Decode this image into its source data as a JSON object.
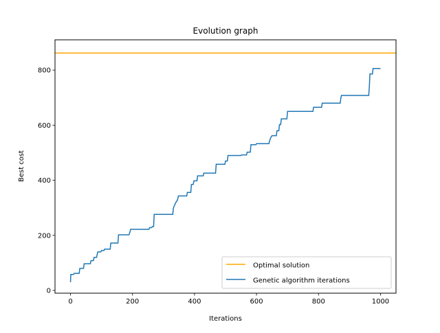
{
  "chart_data": {
    "type": "line",
    "title": "Evolution graph",
    "xlabel": "Iterations",
    "ylabel": "Best cost",
    "xlim": [
      -50,
      1050
    ],
    "ylim": [
      -10,
      910
    ],
    "xticks": [
      0,
      200,
      400,
      600,
      800,
      1000
    ],
    "yticks": [
      0,
      200,
      400,
      600,
      800
    ],
    "grid": false,
    "legend_position": "bottom-right",
    "series": [
      {
        "name": "Optimal solution",
        "color": "#ffa500",
        "kind": "hline",
        "x": [
          -50,
          1050
        ],
        "y": [
          862,
          862
        ]
      },
      {
        "name": "Genetic algorithm iterations",
        "color": "#1f77b4",
        "kind": "step",
        "points": [
          [
            0,
            30
          ],
          [
            1,
            58
          ],
          [
            10,
            58
          ],
          [
            12,
            62
          ],
          [
            28,
            62
          ],
          [
            30,
            80
          ],
          [
            42,
            80
          ],
          [
            44,
            97
          ],
          [
            64,
            97
          ],
          [
            66,
            108
          ],
          [
            74,
            108
          ],
          [
            76,
            120
          ],
          [
            84,
            120
          ],
          [
            86,
            130
          ],
          [
            88,
            140
          ],
          [
            98,
            140
          ],
          [
            100,
            145
          ],
          [
            108,
            145
          ],
          [
            110,
            150
          ],
          [
            128,
            150
          ],
          [
            130,
            172
          ],
          [
            153,
            172
          ],
          [
            155,
            202
          ],
          [
            188,
            202
          ],
          [
            190,
            205
          ],
          [
            194,
            222
          ],
          [
            253,
            222
          ],
          [
            255,
            228
          ],
          [
            262,
            228
          ],
          [
            264,
            232
          ],
          [
            268,
            232
          ],
          [
            270,
            276
          ],
          [
            330,
            276
          ],
          [
            332,
            300
          ],
          [
            340,
            320
          ],
          [
            345,
            328
          ],
          [
            348,
            343
          ],
          [
            375,
            343
          ],
          [
            377,
            356
          ],
          [
            388,
            356
          ],
          [
            390,
            385
          ],
          [
            396,
            385
          ],
          [
            398,
            398
          ],
          [
            408,
            398
          ],
          [
            410,
            416
          ],
          [
            428,
            416
          ],
          [
            430,
            426
          ],
          [
            468,
            426
          ],
          [
            470,
            458
          ],
          [
            498,
            458
          ],
          [
            500,
            470
          ],
          [
            506,
            470
          ],
          [
            508,
            490
          ],
          [
            550,
            490
          ],
          [
            552,
            492
          ],
          [
            568,
            492
          ],
          [
            570,
            502
          ],
          [
            580,
            502
          ],
          [
            582,
            529
          ],
          [
            598,
            529
          ],
          [
            600,
            533
          ],
          [
            640,
            533
          ],
          [
            642,
            542
          ],
          [
            646,
            555
          ],
          [
            650,
            562
          ],
          [
            664,
            562
          ],
          [
            666,
            580
          ],
          [
            672,
            580
          ],
          [
            674,
            602
          ],
          [
            678,
            602
          ],
          [
            680,
            623
          ],
          [
            698,
            623
          ],
          [
            700,
            650
          ],
          [
            782,
            650
          ],
          [
            784,
            665
          ],
          [
            810,
            665
          ],
          [
            812,
            680
          ],
          [
            870,
            680
          ],
          [
            872,
            698
          ],
          [
            874,
            708
          ],
          [
            962,
            708
          ],
          [
            964,
            740
          ],
          [
            966,
            786
          ],
          [
            974,
            786
          ],
          [
            976,
            806
          ],
          [
            1000,
            806
          ]
        ]
      }
    ]
  }
}
